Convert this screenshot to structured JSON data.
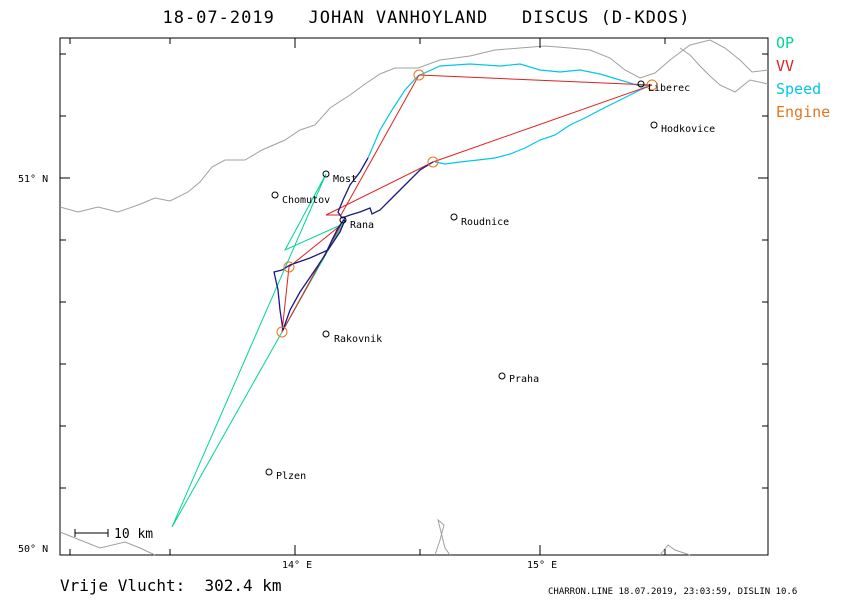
{
  "header": {
    "title": "18-07-2019   JOHAN VANHOYLAND   DISCUS (D-KDOS)"
  },
  "legend": [
    {
      "label": "OP",
      "color": "#00d49a"
    },
    {
      "label": "VV",
      "color": "#e02020"
    },
    {
      "label": "Speed",
      "color": "#00c8e8"
    },
    {
      "label": "Engine",
      "color": "#e07820"
    }
  ],
  "axes": {
    "lat_labels": [
      "51° N",
      "50° N"
    ],
    "lon_labels": [
      "14° E",
      "15° E"
    ]
  },
  "scale_bar": {
    "label": "10  km"
  },
  "towns": [
    {
      "name": "Liberec"
    },
    {
      "name": "Hodkovice"
    },
    {
      "name": "Most"
    },
    {
      "name": "Chomutov"
    },
    {
      "name": "Rana"
    },
    {
      "name": "Roudnice"
    },
    {
      "name": "Rakovnik"
    },
    {
      "name": "Praha"
    },
    {
      "name": "Plzen"
    }
  ],
  "footer": {
    "distance": "Vrije Vlucht:  302.4 km",
    "info": "CHARRON.LINE 18.07.2019, 23:03:59, DISLIN 10.6"
  }
}
